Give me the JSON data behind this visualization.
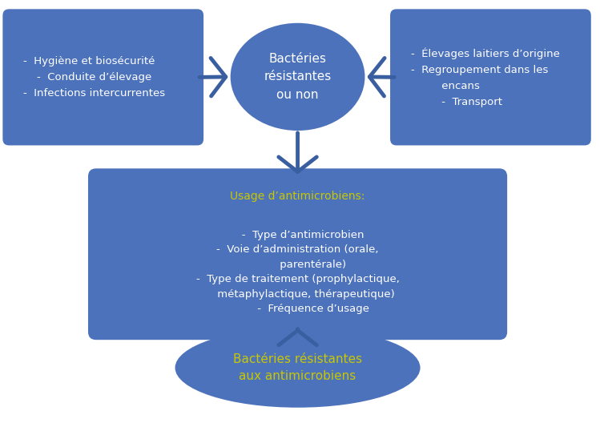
{
  "bg_color": "#ffffff",
  "box_color": "#4D72BC",
  "text_color_white": "#ffffff",
  "text_color_yellow": "#C8C800",
  "top_ellipse_text": "Bactéries\nrésistantes\nou non",
  "left_box_lines": "-  Hygiène et biosécurité\n    -  Conduite d’élevage\n-  Infections intercurrentes",
  "right_box_lines": "-  Élevages laitiers d’origine\n-  Regroupement dans les\n         encans\n         -  Transport",
  "middle_box_title": "Usage d’antimicrobiens:",
  "middle_box_lines": "   -  Type d’antimicrobien\n-  Voie d’administration (orale,\n         parentérale)\n-  Type de traitement (prophylactique,\n     métaphylactique, thérapeutique)\n         -  Fréquence d’usage",
  "bottom_ellipse_text": "Bactéries résistantes\naux antimicrobiens",
  "arrow_color": "#3A5FA0",
  "figsize": [
    7.49,
    5.38
  ],
  "dpi": 100
}
